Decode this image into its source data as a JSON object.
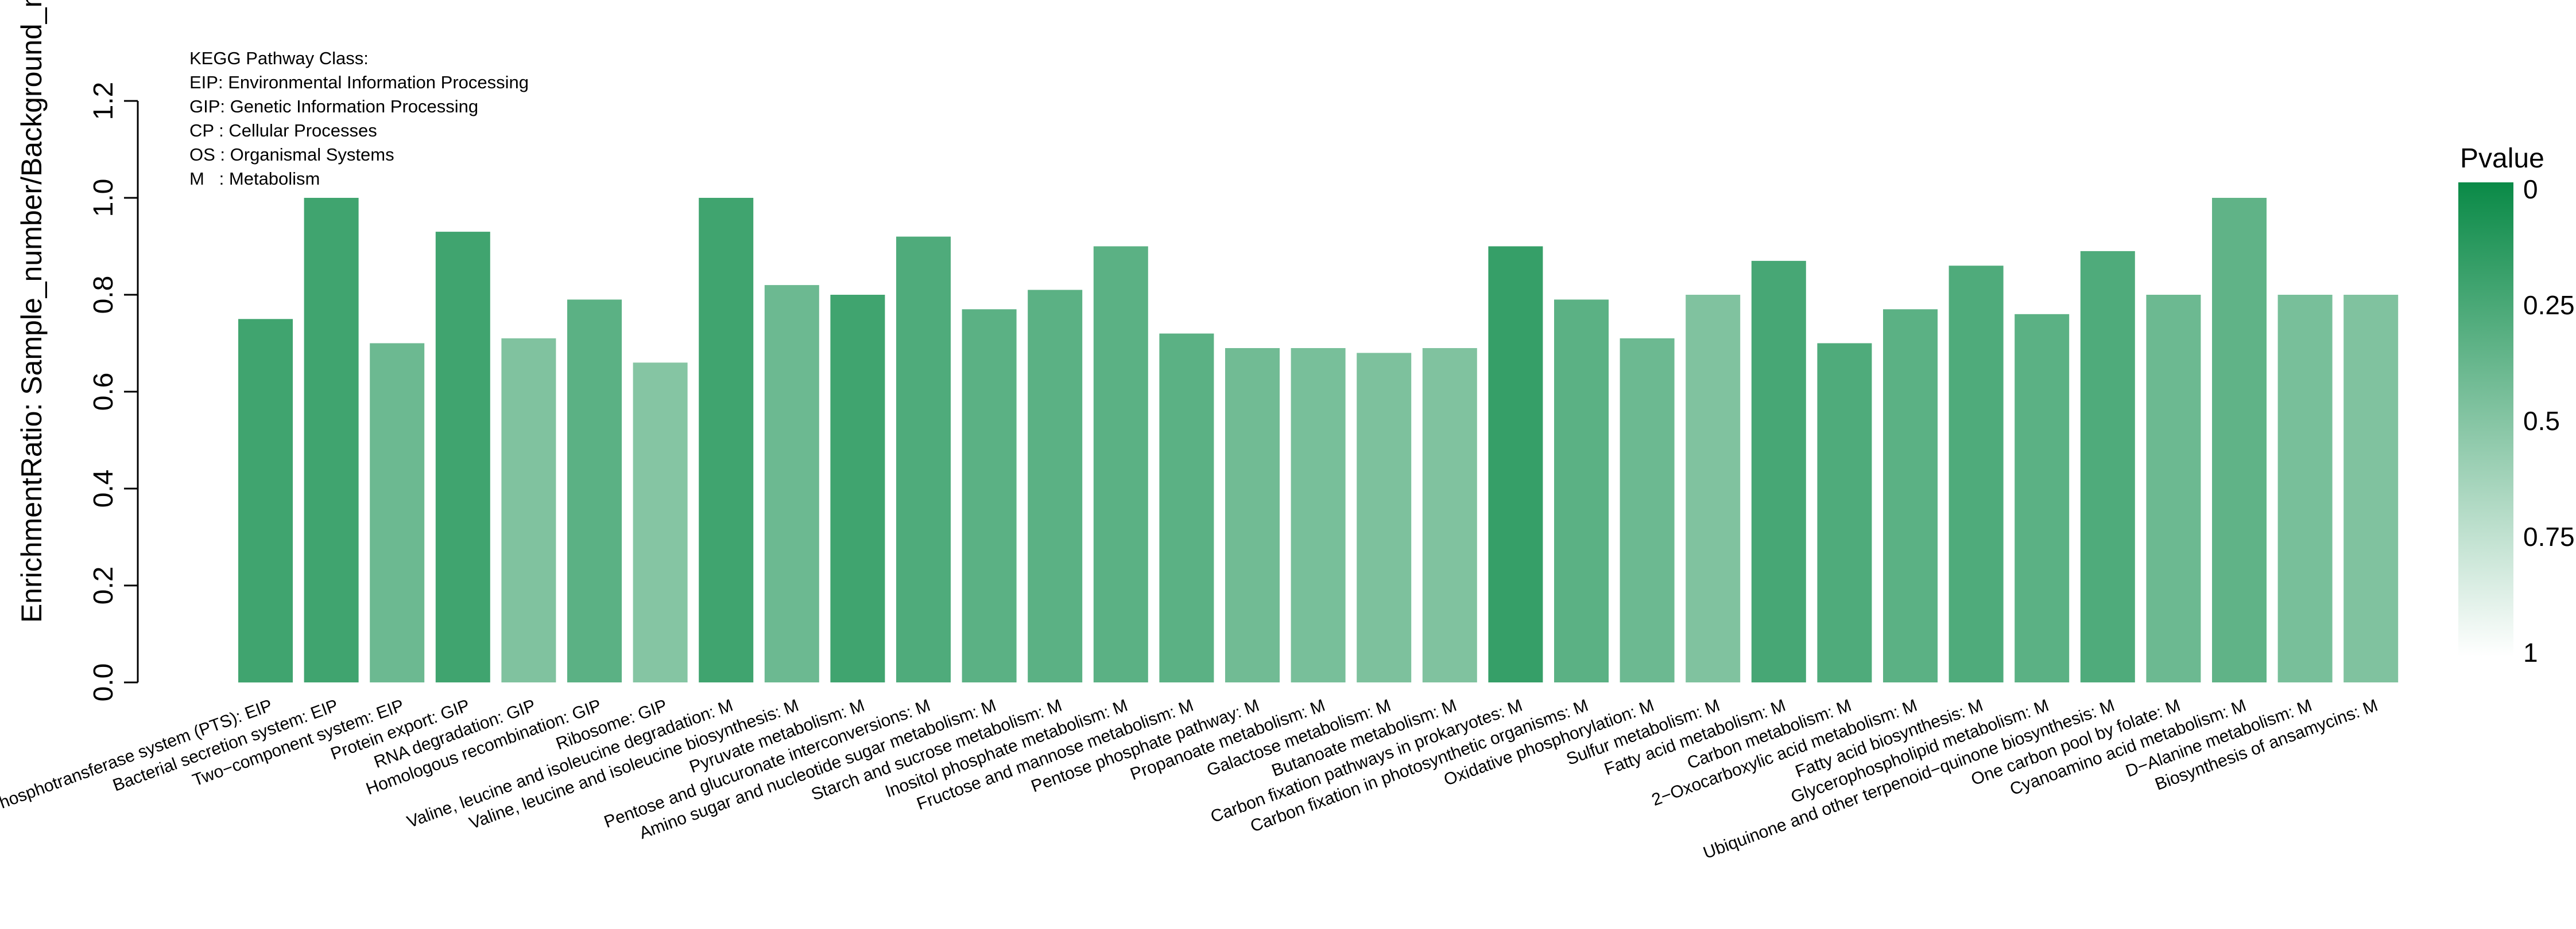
{
  "chart_data": {
    "type": "bar",
    "title": "",
    "ylabel": "EnrichmentRatio: Sample_number/Background_number",
    "xlabel": "",
    "ylim": [
      0,
      1.2
    ],
    "yticks": [
      "0.0",
      "0.2",
      "0.4",
      "0.6",
      "0.8",
      "1.0",
      "1.2"
    ],
    "grid": false,
    "legend_placement": "right",
    "categories": [
      "Phosphotransferase system (PTS):  EIP",
      "Bacterial secretion system:  EIP",
      "Two−component system:  EIP",
      "Protein export:  GIP",
      "RNA degradation:  GIP",
      "Homologous recombination:  GIP",
      "Ribosome:  GIP",
      "Valine, leucine and isoleucine degradation:  M",
      "Valine, leucine and isoleucine biosynthesis:  M",
      "Pyruvate metabolism:  M",
      "Pentose and glucuronate interconversions:  M",
      "Amino sugar and nucleotide sugar metabolism:  M",
      "Starch and sucrose metabolism:  M",
      "Inositol phosphate metabolism:  M",
      "Fructose and mannose metabolism:  M",
      "Pentose phosphate pathway:  M",
      "Propanoate metabolism:  M",
      "Galactose metabolism:  M",
      "Butanoate metabolism:  M",
      "Carbon fixation pathways in prokaryotes:  M",
      "Carbon fixation in photosynthetic organisms:  M",
      "Oxidative phosphorylation:  M",
      "Sulfur metabolism:  M",
      "Fatty acid metabolism:  M",
      "Carbon metabolism:  M",
      "2−Oxocarboxylic acid metabolism:  M",
      "Fatty acid biosynthesis:  M",
      "Glycerophospholipid metabolism:  M",
      "Ubiquinone and other terpenoid−quinone biosynthesis:  M",
      "One carbon pool by folate:  M",
      "Cyanoamino acid metabolism:  M",
      "D−Alanine metabolism:  M",
      "Biosynthesis of ansamycins:  M"
    ],
    "values": [
      0.75,
      1.0,
      0.7,
      0.93,
      0.71,
      0.79,
      0.66,
      1.0,
      0.82,
      0.8,
      0.92,
      0.77,
      0.81,
      0.9,
      0.72,
      0.69,
      0.69,
      0.68,
      0.69,
      0.9,
      0.79,
      0.71,
      0.8,
      0.87,
      0.7,
      0.77,
      0.86,
      0.76,
      0.89,
      0.8,
      1.0,
      0.8,
      0.8
    ],
    "pvalues": [
      0.22,
      0.22,
      0.4,
      0.22,
      0.48,
      0.33,
      0.5,
      0.22,
      0.4,
      0.22,
      0.28,
      0.33,
      0.33,
      0.33,
      0.33,
      0.42,
      0.45,
      0.47,
      0.48,
      0.18,
      0.33,
      0.4,
      0.48,
      0.25,
      0.28,
      0.33,
      0.28,
      0.33,
      0.28,
      0.4,
      0.35,
      0.45,
      0.48
    ],
    "color_legend": {
      "title": "Pvalue",
      "labels": [
        "0",
        "0.25",
        "0.5",
        "0.75",
        "1"
      ],
      "high_color": "#0a8a47",
      "low_color": "#ffffff"
    },
    "annotation": {
      "lines": [
        "KEGG Pathway Class:",
        "EIP: Environmental Information Processing",
        "GIP: Genetic Information Processing",
        "CP : Cellular Processes",
        "OS : Organismal Systems",
        "M   : Metabolism"
      ]
    }
  }
}
